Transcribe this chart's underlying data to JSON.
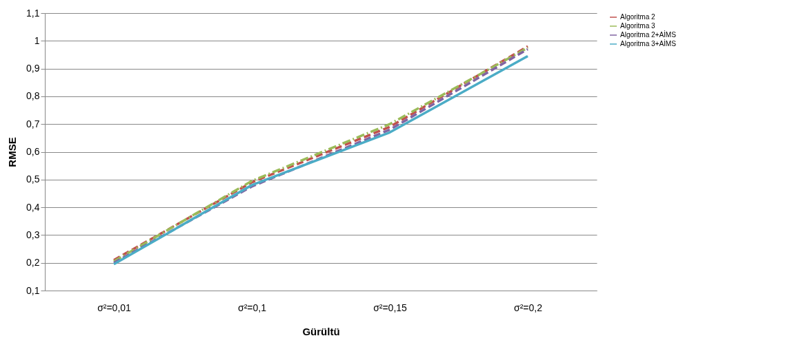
{
  "chart_data": {
    "type": "line",
    "xlabel": "Gürültü",
    "ylabel": "RMSE",
    "categories": [
      "σ²=0,01",
      "σ²=0,1",
      "σ²=0,15",
      "σ²=0,2"
    ],
    "series": [
      {
        "name": "Algoritma 2",
        "color": "#c0504d",
        "line_style": "dashed",
        "values": [
          0.21,
          0.49,
          0.69,
          0.98
        ]
      },
      {
        "name": "Algoritma 3",
        "color": "#9bbb59",
        "line_style": "dashdot",
        "values": [
          0.205,
          0.495,
          0.7,
          0.975
        ]
      },
      {
        "name": "Algoritma 2+AİMS",
        "color": "#8064a2",
        "line_style": "dashed",
        "values": [
          0.2,
          0.475,
          0.68,
          0.97
        ]
      },
      {
        "name": "Algoritma 3+AİMS",
        "color": "#4bacc6",
        "line_style": "solid",
        "values": [
          0.195,
          0.48,
          0.67,
          0.945
        ]
      }
    ],
    "ylim": [
      0.1,
      1.1
    ],
    "yticks": [
      {
        "value": 0.1,
        "label": "0,1"
      },
      {
        "value": 0.2,
        "label": "0,2"
      },
      {
        "value": 0.3,
        "label": "0,3"
      },
      {
        "value": 0.4,
        "label": "0,4"
      },
      {
        "value": 0.5,
        "label": "0,5"
      },
      {
        "value": 0.6,
        "label": "0,6"
      },
      {
        "value": 0.7,
        "label": "0,7"
      },
      {
        "value": 0.8,
        "label": "0,8"
      },
      {
        "value": 0.9,
        "label": "0,9"
      },
      {
        "value": 1,
        "label": "1"
      },
      {
        "value": 1.1,
        "label": "1,1"
      }
    ],
    "grid": "y",
    "legend": "right"
  }
}
